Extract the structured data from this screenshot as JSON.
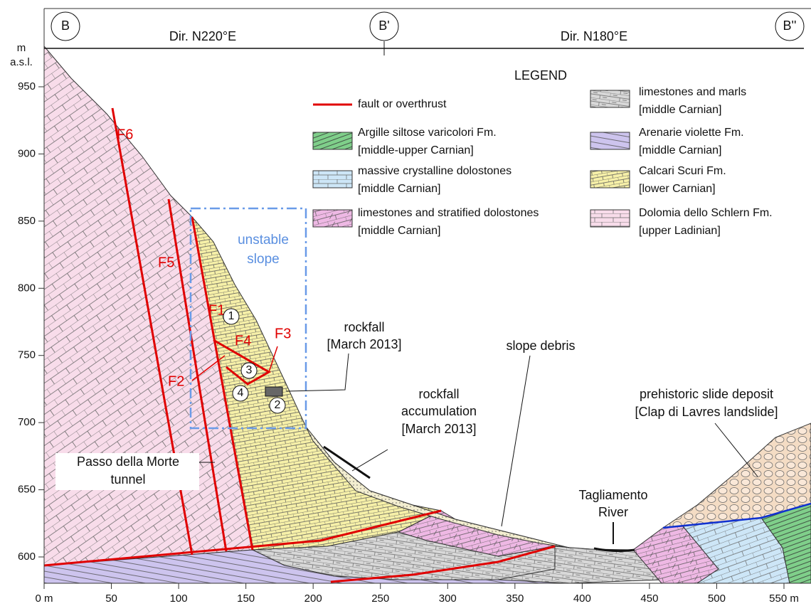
{
  "header": {
    "markers": [
      "B",
      "B'",
      "B''"
    ],
    "directions": [
      "Dir. N220°E",
      "Dir. N180°E"
    ]
  },
  "axes": {
    "y_unit": [
      "m",
      "a.s.l."
    ],
    "xticks": [
      {
        "value": 0,
        "label": "0 m"
      },
      50,
      100,
      150,
      200,
      250,
      300,
      350,
      400,
      450,
      500,
      {
        "value": 550,
        "label": "550 m"
      }
    ],
    "yticks": [
      600,
      650,
      700,
      750,
      800,
      850,
      900,
      950
    ]
  },
  "faults": [
    "F1",
    "F2",
    "F3",
    "F4",
    "F5",
    "F6"
  ],
  "sites": [
    "1",
    "2",
    "3",
    "4"
  ],
  "labels": {
    "unstable_slope": [
      "unstable",
      "slope"
    ],
    "rockfall": [
      "rockfall",
      "[March 2013]"
    ],
    "accumulation": [
      "rockfall",
      "accumulation",
      "[March 2013]"
    ],
    "slope_debris": "slope debris",
    "river": [
      "Tagliamento",
      "River"
    ],
    "slide": [
      "prehistoric slide deposit",
      "[Clap di Lavres landslide]"
    ],
    "tunnel": [
      "Passo della Morte",
      "tunnel"
    ]
  },
  "legend": {
    "title": "LEGEND",
    "fault": "fault or overthrust",
    "units": [
      {
        "name": "Argille siltose varicolori Fm.",
        "detail": "[middle-upper Carnian]"
      },
      {
        "name": "massive crystalline dolostones",
        "detail": "[middle Carnian]"
      },
      {
        "name": "limestones and stratified dolostones",
        "detail": "[middle Carnian]"
      },
      {
        "name": "limestones and marls",
        "detail": "[middle Carnian]"
      },
      {
        "name": "Arenarie violette Fm.",
        "detail": "[middle Carnian]"
      },
      {
        "name": "Calcari Scuri Fm.",
        "detail": "[lower Carnian]"
      },
      {
        "name": "Dolomia dello Schlern Fm.",
        "detail": "[upper Ladinian]"
      }
    ]
  }
}
